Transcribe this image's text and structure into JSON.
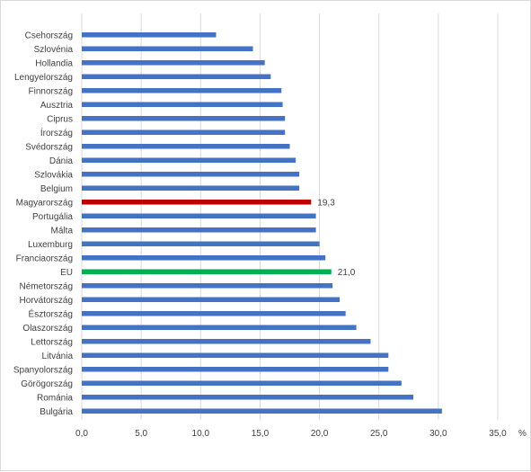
{
  "chart_data": {
    "type": "bar",
    "orientation": "horizontal",
    "title": "",
    "xlabel": "",
    "ylabel": "",
    "unit": "%",
    "xlim": [
      0,
      35
    ],
    "xticks": [
      "0,0",
      "5,0",
      "10,0",
      "15,0",
      "20,0",
      "25,0",
      "30,0",
      "35,0"
    ],
    "grid": "vertical",
    "legend": "none",
    "colors": {
      "default": "#4472c4",
      "highlight_hungary": "#c00000",
      "highlight_eu": "#00b050",
      "grid": "#d9d9d9",
      "text": "#404040"
    },
    "categories": [
      "Csehország",
      "Szlovénia",
      "Hollandia",
      "Lengyelország",
      "Finnország",
      "Ausztria",
      "Ciprus",
      "Írország",
      "Svédország",
      "Dánia",
      "Szlovákia",
      "Belgium",
      "Magyarország",
      "Portugália",
      "Málta",
      "Luxemburg",
      "Franciaország",
      "EU",
      "Németország",
      "Horvátország",
      "Észtország",
      "Olaszország",
      "Lettország",
      "Litvánia",
      "Spanyolország",
      "Görögország",
      "Románia",
      "Bulgária"
    ],
    "values": [
      11.3,
      14.4,
      15.4,
      15.9,
      16.8,
      16.9,
      17.1,
      17.1,
      17.5,
      18.0,
      18.3,
      18.3,
      19.3,
      19.7,
      19.7,
      20.0,
      20.5,
      21.0,
      21.1,
      21.7,
      22.2,
      23.1,
      24.3,
      25.8,
      25.8,
      26.9,
      27.9,
      30.3
    ],
    "highlights": {
      "Magyarország": "highlight_hungary",
      "EU": "highlight_eu"
    },
    "data_labels": {
      "Magyarország": "19,3",
      "EU": "21,0"
    }
  }
}
